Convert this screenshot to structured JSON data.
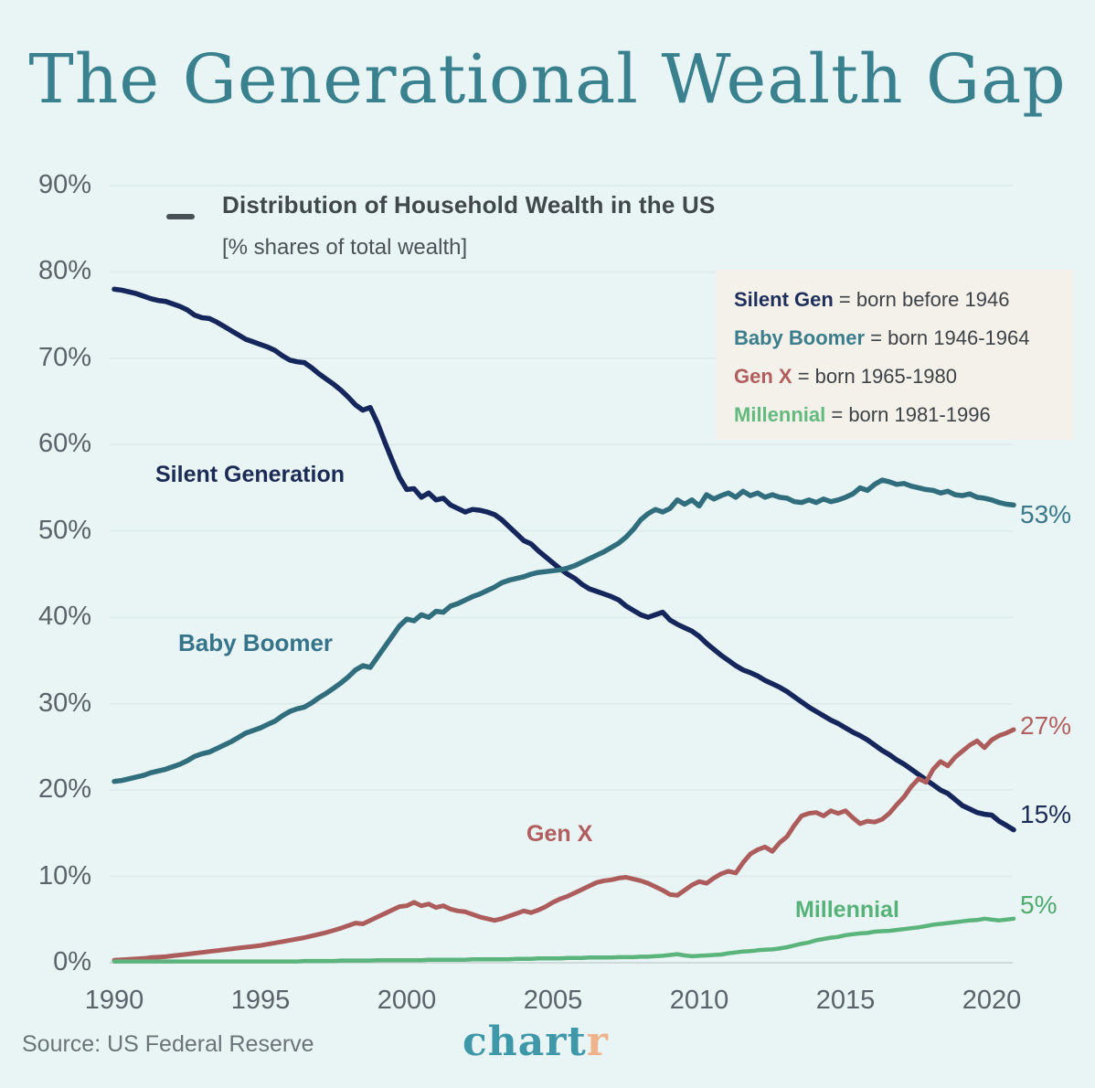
{
  "title": "The Generational Wealth Gap",
  "subtitle": {
    "line1": "Distribution of Household Wealth in the US",
    "line2": "[% shares of total wealth]"
  },
  "legend": {
    "background": "#f4f1ea",
    "items": [
      {
        "name": "Silent Gen",
        "rest": " = born before 1946",
        "color": "#1e2f5c"
      },
      {
        "name": "Baby Boomer",
        "rest": " = born 1946-1964",
        "color": "#3b7d8d"
      },
      {
        "name": "Gen X",
        "rest": " = born 1965-1980",
        "color": "#b25d5d"
      },
      {
        "name": "Millennial",
        "rest": " = born 1981-1996",
        "color": "#63ba7e"
      }
    ]
  },
  "series_labels": [
    {
      "text": "Silent Generation",
      "color": "#1b2b55",
      "size": 25
    },
    {
      "text": "Baby Boomer",
      "color": "#35748a",
      "size": 26
    },
    {
      "text": "Gen X",
      "color": "#b25d5d",
      "size": 25
    },
    {
      "text": "Millennial",
      "color": "#55b278",
      "size": 25
    }
  ],
  "end_labels": [
    {
      "text": "53%",
      "color": "#38798a"
    },
    {
      "text": "27%",
      "color": "#b26161"
    },
    {
      "text": "15%",
      "color": "#1b2b55"
    },
    {
      "text": "5%",
      "color": "#4cab6d"
    }
  ],
  "source": "Source: US Federal Reserve",
  "logo": {
    "part1": "chart",
    "part2": "r",
    "color1": "#3f98a9",
    "color2": "#efb38c"
  },
  "colors": {
    "background": "#e9f4f4",
    "title": "#39818f",
    "grid": "#dcebeb",
    "grid_zero": "#c5d2d2",
    "tick_text": "#5a6369"
  },
  "chart_data": {
    "type": "line",
    "title": "Distribution of Household Wealth in the US",
    "subtitle": "[% shares of total wealth]",
    "xlabel": "",
    "ylabel": "% shares of total wealth",
    "ylim": [
      0,
      90
    ],
    "grid": "horizontal",
    "legend_position": "in-chart labels",
    "x_start": 1990,
    "x_step": 0.25,
    "x_ticks": [
      {
        "label": "1990",
        "value": 1990
      },
      {
        "label": "1995",
        "value": 1995
      },
      {
        "label": "2000",
        "value": 2000
      },
      {
        "label": "2005",
        "value": 2005
      },
      {
        "label": "2010",
        "value": 2010
      },
      {
        "label": "2015",
        "value": 2015
      },
      {
        "label": "2020",
        "value": 2020
      }
    ],
    "y_ticks": [
      {
        "label": "90%",
        "value": 90
      },
      {
        "label": "80%",
        "value": 80
      },
      {
        "label": "70%",
        "value": 70
      },
      {
        "label": "60%",
        "value": 60
      },
      {
        "label": "50%",
        "value": 50
      },
      {
        "label": "40%",
        "value": 40
      },
      {
        "label": "30%",
        "value": 30
      },
      {
        "label": "20%",
        "value": 20
      },
      {
        "label": "10%",
        "value": 10
      },
      {
        "label": "0%",
        "value": 0
      }
    ],
    "series": [
      {
        "name": "Silent Generation",
        "color": "#14265b",
        "width": 5.5,
        "end_value_label": "15%",
        "values": [
          78.0,
          77.9,
          77.7,
          77.5,
          77.2,
          76.9,
          76.7,
          76.6,
          76.3,
          76.0,
          75.6,
          75.0,
          74.7,
          74.6,
          74.2,
          73.7,
          73.2,
          72.7,
          72.2,
          71.9,
          71.6,
          71.3,
          70.9,
          70.3,
          69.8,
          69.6,
          69.5,
          68.9,
          68.2,
          67.6,
          67.0,
          66.3,
          65.5,
          64.6,
          64.0,
          64.3,
          62.5,
          60.3,
          58.2,
          56.2,
          54.8,
          54.9,
          53.9,
          54.4,
          53.6,
          53.8,
          53.0,
          52.6,
          52.2,
          52.5,
          52.4,
          52.2,
          51.9,
          51.3,
          50.5,
          49.7,
          48.9,
          48.5,
          47.7,
          47.0,
          46.3,
          45.6,
          45.0,
          44.5,
          43.8,
          43.3,
          43.0,
          42.7,
          42.4,
          42.0,
          41.3,
          40.8,
          40.3,
          40.0,
          40.3,
          40.6,
          39.7,
          39.2,
          38.8,
          38.4,
          37.8,
          37.0,
          36.3,
          35.6,
          35.0,
          34.4,
          33.9,
          33.6,
          33.2,
          32.7,
          32.3,
          31.9,
          31.4,
          30.8,
          30.2,
          29.6,
          29.1,
          28.6,
          28.1,
          27.7,
          27.2,
          26.7,
          26.3,
          25.8,
          25.2,
          24.6,
          24.1,
          23.5,
          23.0,
          22.4,
          21.8,
          21.2,
          20.6,
          20.0,
          19.6,
          18.9,
          18.2,
          17.8,
          17.4,
          17.2,
          17.1,
          16.4,
          15.9,
          15.4
        ]
      },
      {
        "name": "Baby Boomer",
        "color": "#306e7e",
        "width": 5.5,
        "end_value_label": "53%",
        "values": [
          21.0,
          21.1,
          21.3,
          21.5,
          21.7,
          22.0,
          22.2,
          22.4,
          22.7,
          23.0,
          23.4,
          23.9,
          24.2,
          24.4,
          24.8,
          25.2,
          25.6,
          26.1,
          26.6,
          26.9,
          27.2,
          27.6,
          28.0,
          28.6,
          29.1,
          29.4,
          29.6,
          30.1,
          30.7,
          31.2,
          31.8,
          32.4,
          33.1,
          33.9,
          34.4,
          34.2,
          35.4,
          36.6,
          37.8,
          39.0,
          39.8,
          39.6,
          40.3,
          40.0,
          40.7,
          40.6,
          41.3,
          41.6,
          42.0,
          42.4,
          42.7,
          43.1,
          43.5,
          44.0,
          44.3,
          44.5,
          44.7,
          45.0,
          45.2,
          45.3,
          45.4,
          45.5,
          45.7,
          46.0,
          46.4,
          46.8,
          47.2,
          47.6,
          48.1,
          48.6,
          49.3,
          50.2,
          51.3,
          52.0,
          52.5,
          52.2,
          52.6,
          53.6,
          53.1,
          53.6,
          52.9,
          54.2,
          53.7,
          54.1,
          54.4,
          53.9,
          54.6,
          54.1,
          54.4,
          53.9,
          54.2,
          53.9,
          53.8,
          53.4,
          53.3,
          53.6,
          53.3,
          53.7,
          53.4,
          53.6,
          53.9,
          54.3,
          55.0,
          54.7,
          55.4,
          55.9,
          55.7,
          55.4,
          55.5,
          55.2,
          55.0,
          54.8,
          54.7,
          54.4,
          54.6,
          54.2,
          54.1,
          54.3,
          53.9,
          53.8,
          53.6,
          53.3,
          53.1,
          53.0
        ]
      },
      {
        "name": "Gen X",
        "color": "#ad5c5c",
        "width": 5,
        "end_value_label": "27%",
        "values": [
          0.3,
          0.35,
          0.4,
          0.45,
          0.5,
          0.6,
          0.65,
          0.7,
          0.8,
          0.9,
          1.0,
          1.1,
          1.2,
          1.3,
          1.4,
          1.5,
          1.6,
          1.7,
          1.8,
          1.9,
          2.0,
          2.15,
          2.3,
          2.45,
          2.6,
          2.75,
          2.9,
          3.1,
          3.3,
          3.5,
          3.75,
          4.0,
          4.3,
          4.6,
          4.5,
          4.9,
          5.3,
          5.7,
          6.1,
          6.5,
          6.6,
          7.0,
          6.6,
          6.8,
          6.4,
          6.6,
          6.2,
          6.0,
          5.9,
          5.6,
          5.3,
          5.1,
          4.9,
          5.1,
          5.4,
          5.7,
          6.0,
          5.8,
          6.1,
          6.5,
          7.0,
          7.4,
          7.7,
          8.1,
          8.5,
          8.9,
          9.3,
          9.5,
          9.6,
          9.8,
          9.9,
          9.7,
          9.5,
          9.2,
          8.8,
          8.4,
          7.9,
          7.8,
          8.4,
          9.0,
          9.4,
          9.2,
          9.8,
          10.3,
          10.6,
          10.4,
          11.6,
          12.6,
          13.1,
          13.4,
          12.9,
          13.9,
          14.6,
          15.9,
          17.0,
          17.3,
          17.4,
          17.0,
          17.6,
          17.3,
          17.6,
          16.8,
          16.1,
          16.4,
          16.3,
          16.6,
          17.3,
          18.3,
          19.2,
          20.4,
          21.3,
          20.9,
          22.4,
          23.3,
          22.8,
          23.8,
          24.5,
          25.2,
          25.7,
          24.9,
          25.8,
          26.3,
          26.6,
          27.0
        ]
      },
      {
        "name": "Millennial",
        "color": "#5bb47b",
        "width": 4.5,
        "end_value_label": "5%",
        "values": [
          0.15,
          0.15,
          0.15,
          0.15,
          0.15,
          0.15,
          0.15,
          0.15,
          0.15,
          0.15,
          0.15,
          0.15,
          0.15,
          0.15,
          0.15,
          0.15,
          0.15,
          0.15,
          0.15,
          0.15,
          0.15,
          0.15,
          0.15,
          0.15,
          0.15,
          0.15,
          0.2,
          0.2,
          0.2,
          0.2,
          0.2,
          0.25,
          0.25,
          0.25,
          0.25,
          0.25,
          0.3,
          0.3,
          0.3,
          0.3,
          0.3,
          0.3,
          0.3,
          0.35,
          0.35,
          0.35,
          0.35,
          0.35,
          0.35,
          0.4,
          0.4,
          0.4,
          0.4,
          0.4,
          0.4,
          0.45,
          0.45,
          0.45,
          0.5,
          0.5,
          0.5,
          0.5,
          0.55,
          0.55,
          0.55,
          0.6,
          0.6,
          0.6,
          0.6,
          0.65,
          0.65,
          0.65,
          0.7,
          0.7,
          0.75,
          0.8,
          0.9,
          1.0,
          0.85,
          0.75,
          0.8,
          0.85,
          0.9,
          0.95,
          1.1,
          1.2,
          1.3,
          1.35,
          1.45,
          1.5,
          1.55,
          1.65,
          1.8,
          2.0,
          2.2,
          2.35,
          2.6,
          2.75,
          2.9,
          3.0,
          3.2,
          3.3,
          3.4,
          3.45,
          3.6,
          3.65,
          3.7,
          3.8,
          3.9,
          4.0,
          4.1,
          4.25,
          4.4,
          4.5,
          4.6,
          4.7,
          4.8,
          4.9,
          4.95,
          5.1,
          5.0,
          4.9,
          5.0,
          5.1
        ]
      }
    ]
  }
}
